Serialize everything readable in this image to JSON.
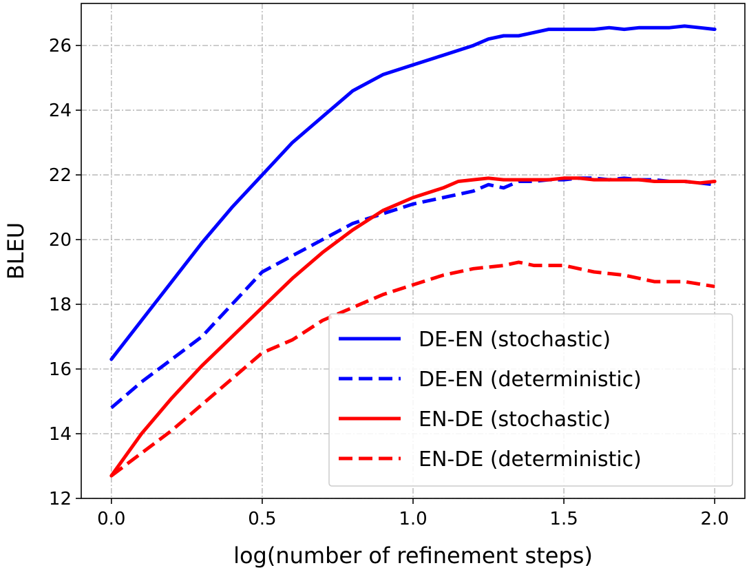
{
  "chart_data": {
    "type": "line",
    "title": "",
    "xlabel": "log(number of refinement steps)",
    "ylabel": "BLEU",
    "xlim": [
      -0.1,
      2.1
    ],
    "ylim": [
      12,
      27.3
    ],
    "xticks": [
      "0.0",
      "0.5",
      "1.0",
      "1.5",
      "2.0"
    ],
    "xtick_values": [
      0.0,
      0.5,
      1.0,
      1.5,
      2.0
    ],
    "yticks": [
      "12",
      "14",
      "16",
      "18",
      "20",
      "22",
      "24",
      "26"
    ],
    "ytick_values": [
      12,
      14,
      16,
      18,
      20,
      22,
      24,
      26
    ],
    "grid": true,
    "legend_position": "lower-right",
    "series": [
      {
        "name": "DE-EN (stochastic)",
        "color": "#0000ff",
        "dash": "solid",
        "x": [
          0.0,
          0.1,
          0.2,
          0.3,
          0.4,
          0.5,
          0.6,
          0.7,
          0.8,
          0.9,
          1.0,
          1.1,
          1.2,
          1.25,
          1.3,
          1.35,
          1.4,
          1.45,
          1.5,
          1.55,
          1.6,
          1.65,
          1.7,
          1.75,
          1.8,
          1.85,
          1.9,
          1.95,
          2.0
        ],
        "y": [
          16.3,
          17.5,
          18.7,
          19.9,
          21.0,
          22.0,
          23.0,
          23.8,
          24.6,
          25.1,
          25.4,
          25.7,
          26.0,
          26.2,
          26.3,
          26.3,
          26.4,
          26.5,
          26.5,
          26.5,
          26.5,
          26.55,
          26.5,
          26.55,
          26.55,
          26.55,
          26.6,
          26.55,
          26.5
        ]
      },
      {
        "name": "DE-EN (deterministic)",
        "color": "#0000ff",
        "dash": "dashed",
        "x": [
          0.0,
          0.1,
          0.2,
          0.3,
          0.4,
          0.5,
          0.6,
          0.7,
          0.8,
          0.9,
          1.0,
          1.1,
          1.2,
          1.25,
          1.3,
          1.35,
          1.4,
          1.45,
          1.5,
          1.55,
          1.6,
          1.65,
          1.7,
          1.75,
          1.8,
          1.85,
          1.9,
          1.95,
          2.0
        ],
        "y": [
          14.8,
          15.6,
          16.3,
          17.0,
          18.0,
          19.0,
          19.5,
          20.0,
          20.5,
          20.8,
          21.1,
          21.3,
          21.5,
          21.7,
          21.6,
          21.8,
          21.8,
          21.85,
          21.85,
          21.9,
          21.9,
          21.85,
          21.9,
          21.85,
          21.85,
          21.8,
          21.8,
          21.75,
          21.7
        ]
      },
      {
        "name": "EN-DE (stochastic)",
        "color": "#ff0000",
        "dash": "solid",
        "x": [
          0.0,
          0.1,
          0.2,
          0.3,
          0.4,
          0.5,
          0.6,
          0.7,
          0.8,
          0.9,
          1.0,
          1.1,
          1.15,
          1.2,
          1.25,
          1.3,
          1.35,
          1.4,
          1.45,
          1.5,
          1.55,
          1.6,
          1.65,
          1.7,
          1.75,
          1.8,
          1.85,
          1.9,
          1.95,
          2.0
        ],
        "y": [
          12.7,
          14.0,
          15.1,
          16.1,
          17.0,
          17.9,
          18.8,
          19.6,
          20.3,
          20.9,
          21.3,
          21.6,
          21.8,
          21.85,
          21.9,
          21.85,
          21.85,
          21.85,
          21.85,
          21.9,
          21.9,
          21.85,
          21.85,
          21.85,
          21.85,
          21.8,
          21.8,
          21.8,
          21.75,
          21.8
        ]
      },
      {
        "name": "EN-DE (deterministic)",
        "color": "#ff0000",
        "dash": "dashed",
        "x": [
          0.0,
          0.1,
          0.2,
          0.3,
          0.4,
          0.5,
          0.6,
          0.7,
          0.8,
          0.9,
          1.0,
          1.1,
          1.2,
          1.3,
          1.35,
          1.4,
          1.5,
          1.6,
          1.7,
          1.8,
          1.9,
          2.0
        ],
        "y": [
          12.7,
          13.4,
          14.1,
          14.9,
          15.7,
          16.5,
          16.9,
          17.5,
          17.9,
          18.3,
          18.6,
          18.9,
          19.1,
          19.2,
          19.3,
          19.2,
          19.2,
          19.0,
          18.9,
          18.7,
          18.7,
          18.55
        ]
      }
    ]
  }
}
